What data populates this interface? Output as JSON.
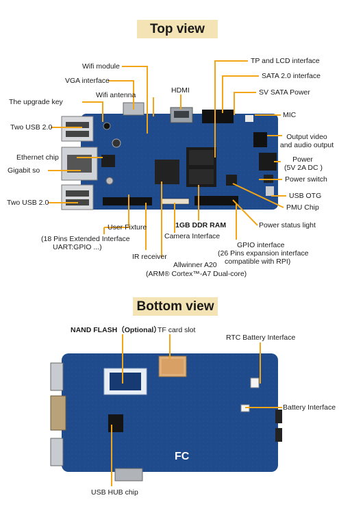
{
  "top_view": {
    "title": "Top view",
    "labels": {
      "wifi_module": "Wifi module",
      "vga_interface": "VGA interface",
      "wifi_antenna": "Wifi antenna",
      "hdmi": "HDMI",
      "upgrade_key": "The upgrade key",
      "two_usb_top": "Two USB 2.0",
      "ethernet_chip": "Ethernet chip",
      "gigabit": "Gigabit so",
      "two_usb_bottom": "Two USB 2.0",
      "user_fixture": "User Fixture",
      "ext_line1": "(18 Pins Extended Interface",
      "ext_line2": "UART:GPIO ...)",
      "ir_receiver": "IR receiver",
      "allwinner": "Allwinner A20",
      "arm_core": "(ARM® Cortex™-A7 Dual-core)",
      "camera_interface": "Camera Interface",
      "ddr_ram": "1GB DDR RAM",
      "gpio_line1": "GPIO  interface",
      "gpio_line2": "(26 Pins expansion interface",
      "gpio_line3": "compatible with RPI)",
      "tp_lcd": "TP and LCD interface",
      "sata": "SATA 2.0 interface",
      "sv_sata_power": "SV SATA Power",
      "mic": "MIC",
      "output_av_line1": "Output video",
      "output_av_line2": "and audio output",
      "power_line1": "Power",
      "power_line2": "(5V 2A DC )",
      "power_switch": "Power switch",
      "usb_otg": "USB OTG",
      "pmu_chip": "PMU Chip",
      "power_status": "Power status light"
    }
  },
  "bottom_view": {
    "title": "Bottom view",
    "labels": {
      "nand_flash": "NAND FLASH（Optional）",
      "tf_card": "TF card slot",
      "rtc_battery": "RTC Battery Interface",
      "battery_interface": "Battery Interface",
      "usb_hub": "USB HUB chip"
    },
    "board_markings": {
      "fc_mark": "FC"
    }
  },
  "colors": {
    "title_bg": "#f4e3b5",
    "leader": "#f2a516",
    "pcb_blue": "#1f4a8c",
    "pcb_dark": "#173a72"
  }
}
